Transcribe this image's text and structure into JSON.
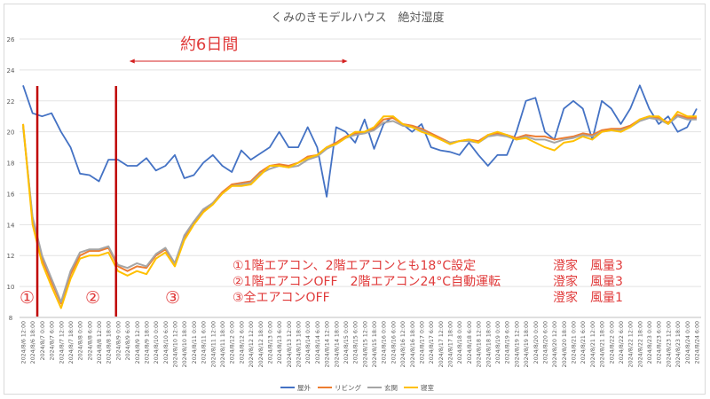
{
  "chart_data": {
    "type": "line",
    "title": "くみのきモデルハウス　絶対湿度",
    "xlabel": "",
    "ylabel": "",
    "ylim": [
      8,
      26
    ],
    "yticks": [
      "8",
      "10",
      "12",
      "14",
      "16",
      "18",
      "20",
      "22",
      "24",
      "26"
    ],
    "grid": true,
    "legend_position": "bottom",
    "x": [
      "2024/8/6 12:00",
      "2024/8/6 18:00",
      "2024/8/7 0:00",
      "2024/8/7 6:00",
      "2024/8/7 12:00",
      "2024/8/7 18:00",
      "2024/8/8 0:00",
      "2024/8/8 6:00",
      "2024/8/8 12:00",
      "2024/8/8 18:00",
      "2024/8/9 0:00",
      "2024/8/9 6:00",
      "2024/8/9 12:00",
      "2024/8/9 18:00",
      "2024/8/10 0:00",
      "2024/8/10 6:00",
      "2024/8/10 12:00",
      "2024/8/10 18:00",
      "2024/8/11 0:00",
      "2024/8/11 6:00",
      "2024/8/11 12:00",
      "2024/8/11 18:00",
      "2024/8/12 0:00",
      "2024/8/12 6:00",
      "2024/8/12 12:00",
      "2024/8/12 18:00",
      "2024/8/13 0:00",
      "2024/8/13 6:00",
      "2024/8/13 12:00",
      "2024/8/13 18:00",
      "2024/8/14 0:00",
      "2024/8/14 6:00",
      "2024/8/14 12:00",
      "2024/8/14 18:00",
      "2024/8/15 0:00",
      "2024/8/15 6:00",
      "2024/8/15 12:00",
      "2024/8/15 18:00",
      "2024/8/16 0:00",
      "2024/8/16 6:00",
      "2024/8/16 12:00",
      "2024/8/16 18:00",
      "2024/8/17 0:00",
      "2024/8/17 6:00",
      "2024/8/17 12:00",
      "2024/8/17 18:00",
      "2024/8/18 0:00",
      "2024/8/18 6:00",
      "2024/8/18 12:00",
      "2024/8/18 18:00",
      "2024/8/19 0:00",
      "2024/8/19 6:00",
      "2024/8/19 12:00",
      "2024/8/19 18:00",
      "2024/8/20 0:00",
      "2024/8/20 6:00",
      "2024/8/20 12:00",
      "2024/8/20 18:00",
      "2024/8/21 0:00",
      "2024/8/21 6:00",
      "2024/8/21 12:00",
      "2024/8/21 18:00",
      "2024/8/22 0:00",
      "2024/8/22 6:00",
      "2024/8/22 12:00",
      "2024/8/22 18:00",
      "2024/8/23 0:00",
      "2024/8/23 6:00",
      "2024/8/23 12:00",
      "2024/8/23 18:00",
      "2024/8/24 0:00",
      "2024/8/24 6:00"
    ],
    "series": [
      {
        "name": "屋外",
        "color": "#4472c4",
        "values": [
          23.0,
          21.2,
          21.0,
          21.2,
          20.0,
          19.0,
          17.3,
          17.2,
          16.8,
          18.2,
          18.2,
          17.8,
          17.8,
          18.3,
          17.5,
          17.8,
          18.5,
          17.0,
          17.2,
          18.0,
          18.5,
          17.8,
          17.4,
          18.8,
          18.2,
          18.6,
          19.0,
          20.0,
          19.0,
          19.0,
          20.3,
          19.0,
          15.8,
          20.3,
          20.0,
          19.3,
          20.8,
          18.9,
          20.5,
          21.0,
          20.5,
          20.0,
          20.5,
          19.0,
          18.8,
          18.7,
          18.5,
          19.3,
          18.5,
          17.8,
          18.5,
          18.5,
          20.0,
          22.0,
          22.2,
          20.0,
          19.5,
          21.5,
          22.0,
          21.5,
          19.5,
          22.0,
          21.5,
          20.5,
          21.5,
          23.0,
          21.5,
          20.5,
          21.0,
          20.0,
          20.3,
          21.5
        ]
      },
      {
        "name": "リビング",
        "color": "#ed7d31",
        "values": [
          20.5,
          14.3,
          11.8,
          10.3,
          8.9,
          10.8,
          12.0,
          12.3,
          12.3,
          12.5,
          11.3,
          11.0,
          11.3,
          11.2,
          12.0,
          12.4,
          11.5,
          13.2,
          14.1,
          14.9,
          15.4,
          16.1,
          16.6,
          16.7,
          16.8,
          17.4,
          17.8,
          17.9,
          17.8,
          18.0,
          18.4,
          18.5,
          19.0,
          19.3,
          19.7,
          19.9,
          20.0,
          20.2,
          20.8,
          20.9,
          20.5,
          20.4,
          20.2,
          19.9,
          19.6,
          19.3,
          19.4,
          19.5,
          19.4,
          19.8,
          19.9,
          19.8,
          19.6,
          19.8,
          19.7,
          19.7,
          19.5,
          19.6,
          19.7,
          19.9,
          19.8,
          20.1,
          20.2,
          20.2,
          20.4,
          20.8,
          21.0,
          20.9,
          20.6,
          21.1,
          20.9,
          20.9
        ]
      },
      {
        "name": "玄関",
        "color": "#a5a5a5",
        "values": [
          20.3,
          14.5,
          12.0,
          10.5,
          9.0,
          11.0,
          12.2,
          12.4,
          12.4,
          12.6,
          11.4,
          11.2,
          11.5,
          11.3,
          12.1,
          12.5,
          11.5,
          13.3,
          14.2,
          15.0,
          15.4,
          16.0,
          16.5,
          16.6,
          16.7,
          17.3,
          17.6,
          17.8,
          17.7,
          17.8,
          18.2,
          18.4,
          18.9,
          19.2,
          19.6,
          19.8,
          19.9,
          20.1,
          20.6,
          20.7,
          20.4,
          20.3,
          20.1,
          19.8,
          19.5,
          19.3,
          19.4,
          19.4,
          19.3,
          19.7,
          19.8,
          19.7,
          19.5,
          19.7,
          19.5,
          19.5,
          19.3,
          19.5,
          19.6,
          19.8,
          19.7,
          20.0,
          20.1,
          20.1,
          20.3,
          20.7,
          20.9,
          20.8,
          20.5,
          21.0,
          20.8,
          20.8
        ]
      },
      {
        "name": "寝室",
        "color": "#ffc000",
        "values": [
          20.5,
          14.0,
          11.5,
          10.0,
          8.6,
          10.5,
          11.8,
          12.0,
          12.0,
          12.2,
          11.0,
          10.7,
          11.0,
          10.8,
          11.8,
          12.2,
          11.3,
          13.0,
          14.0,
          14.8,
          15.3,
          16.0,
          16.5,
          16.5,
          16.6,
          17.2,
          17.8,
          17.8,
          17.7,
          18.0,
          18.3,
          18.5,
          19.0,
          19.2,
          19.6,
          20.0,
          20.0,
          20.3,
          21.0,
          21.0,
          20.5,
          20.3,
          20.0,
          19.8,
          19.5,
          19.2,
          19.4,
          19.5,
          19.3,
          19.8,
          20.0,
          19.8,
          19.5,
          19.6,
          19.3,
          19.0,
          18.8,
          19.3,
          19.4,
          19.7,
          19.5,
          20.0,
          20.1,
          20.0,
          20.3,
          20.8,
          21.0,
          21.0,
          20.5,
          21.3,
          21.0,
          21.0
        ]
      }
    ],
    "annotations": {
      "period_label": "約6日間",
      "markers": [
        "①",
        "②",
        "③"
      ],
      "divider_after_index": [
        1.5,
        9.8
      ],
      "period_range_index": [
        11.2,
        34.2
      ],
      "notes": [
        {
          "text": "①1階エアコン、2階エアコンとも18°C設定",
          "device": "澄家　風量3"
        },
        {
          "text": "②1階エアコンOFF　2階エアコン24°C自動運転",
          "device": "澄家　風量3"
        },
        {
          "text": "③全エアコンOFF",
          "device": "澄家　風量1"
        }
      ],
      "accent_color": "#c00000"
    }
  }
}
